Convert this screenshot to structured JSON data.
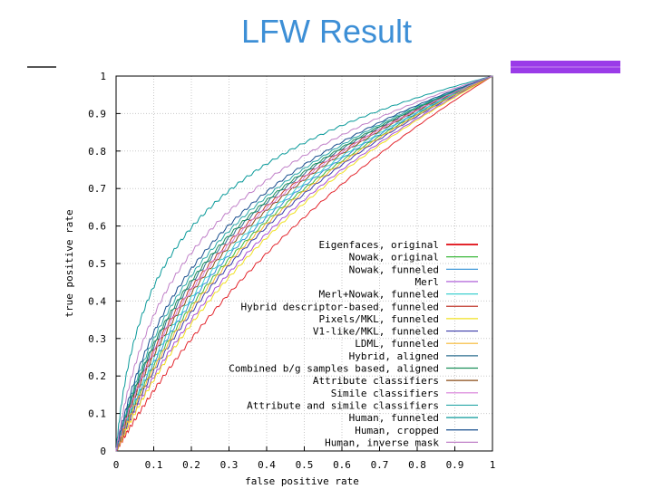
{
  "slide": {
    "title": "LFW Result"
  },
  "colors": {
    "title": "#3d8fd6",
    "accent_bar": "#9a3be8"
  },
  "chart_data": {
    "type": "line",
    "title": "",
    "xlabel": "false positive rate",
    "ylabel": "true positive rate",
    "xlim": [
      0,
      1
    ],
    "ylim": [
      0,
      1
    ],
    "xticks": [
      "0",
      "0.1",
      "0.2",
      "0.3",
      "0.4",
      "0.5",
      "0.6",
      "0.7",
      "0.8",
      "0.9",
      "1"
    ],
    "yticks": [
      "0",
      "0.1",
      "0.2",
      "0.3",
      "0.4",
      "0.5",
      "0.6",
      "0.7",
      "0.8",
      "0.9",
      "1"
    ],
    "grid": true,
    "legend_position": "bottom-right",
    "series": [
      {
        "name": "Eigenfaces, original",
        "color": "#e3262d",
        "k": 1.8
      },
      {
        "name": "Nowak, original",
        "color": "#3cb83c",
        "k": 5.0
      },
      {
        "name": "Nowak, funneled",
        "color": "#2f8fd6",
        "k": 5.6
      },
      {
        "name": "Merl",
        "color": "#a64fd4",
        "k": 3.4
      },
      {
        "name": "Merl+Nowak, funneled",
        "color": "#3fd0d0",
        "k": 6.2
      },
      {
        "name": "Hybrid descriptor-based, funneled",
        "color": "#c0392b",
        "k": 8.0
      },
      {
        "name": "Pixels/MKL, funneled",
        "color": "#f0e020",
        "k": 3.0
      },
      {
        "name": "V1-like/MKL, funneled",
        "color": "#3a3aa8",
        "k": 4.2
      },
      {
        "name": "LDML, funneled",
        "color": "#f5b731",
        "k": 4.6
      },
      {
        "name": "Hybrid, aligned",
        "color": "#2c6e8f",
        "k": 9.0
      },
      {
        "name": "Combined b/g samples based, aligned",
        "color": "#1b8f5a",
        "k": 9.6
      },
      {
        "name": "Attribute classifiers",
        "color": "#8a4b16",
        "k": 7.0
      },
      {
        "name": "Simile classifiers",
        "color": "#d77dd8",
        "k": 7.6
      },
      {
        "name": "Attribute and simile classifiers",
        "color": "#2aa8a8",
        "k": 11.0
      },
      {
        "name": "Human, funneled",
        "color": "#0a9a9a",
        "k": 42.0
      },
      {
        "name": "Human, cropped",
        "color": "#1a4f8f",
        "k": 13.0
      },
      {
        "name": "Human, inverse mask",
        "color": "#c080c8",
        "k": 20.0
      }
    ]
  }
}
